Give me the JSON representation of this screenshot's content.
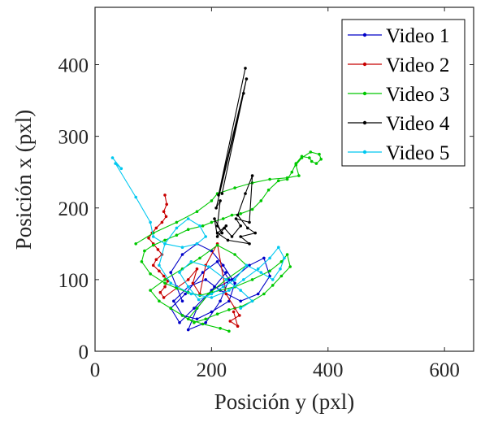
{
  "chart_data": {
    "type": "line",
    "title": "",
    "xlabel": "Posición y (pxl)",
    "ylabel": "Posición x (pxl)",
    "xlim": [
      0,
      650
    ],
    "ylim": [
      0,
      480
    ],
    "xticks": [
      0,
      200,
      400,
      600
    ],
    "yticks": [
      0,
      100,
      200,
      300,
      400
    ],
    "grid": false,
    "legend_position": "top-right",
    "series": [
      {
        "name": "Video 1",
        "color": "#0000c8",
        "x": [
          150,
          140,
          130,
          150,
          175,
          200,
          220,
          240,
          230,
          200,
          175,
          150,
          135,
          160,
          190,
          215,
          250,
          280,
          300,
          290,
          265,
          235,
          200,
          170,
          145,
          130,
          155,
          185,
          210,
          230,
          215,
          190,
          160,
          175,
          205,
          225
        ],
        "y": [
          70,
          90,
          110,
          135,
          150,
          140,
          120,
          95,
          70,
          55,
          45,
          50,
          70,
          90,
          100,
          85,
          70,
          80,
          105,
          130,
          120,
          100,
          85,
          60,
          40,
          60,
          80,
          110,
          125,
          100,
          70,
          40,
          30,
          60,
          90,
          110
        ]
      },
      {
        "name": "Video 2",
        "color": "#c80000",
        "x": [
          120,
          123,
          118,
          122,
          115,
          105,
          98,
          92,
          100,
          108,
          115,
          105,
          100,
          110,
          118,
          125,
          120,
          112,
          118,
          160,
          175,
          168,
          180,
          190,
          210,
          225,
          240,
          248,
          232,
          245,
          238
        ],
        "y": [
          218,
          205,
          195,
          188,
          180,
          172,
          165,
          158,
          150,
          142,
          135,
          128,
          120,
          112,
          105,
          98,
          90,
          82,
          75,
          100,
          115,
          95,
          80,
          120,
          150,
          80,
          60,
          50,
          42,
          35,
          55
        ]
      },
      {
        "name": "Video 3",
        "color": "#00c800",
        "x": [
          70,
          100,
          140,
          175,
          200,
          210,
          240,
          270,
          300,
          330,
          350,
          345,
          355,
          370,
          385,
          388,
          380,
          372,
          368,
          355,
          345,
          338,
          330,
          315,
          298,
          285,
          270,
          250,
          235,
          220,
          200,
          185,
          160,
          140,
          120,
          100,
          85,
          80,
          95,
          120,
          140,
          160,
          180,
          200,
          240,
          270,
          300,
          320,
          330,
          335,
          320,
          305,
          290,
          270,
          250,
          230,
          210,
          190,
          170,
          150,
          130,
          110,
          95,
          120,
          150,
          180,
          210,
          240,
          260,
          225,
          195,
          175,
          160,
          185,
          215,
          230
        ],
        "y": [
          150,
          165,
          180,
          195,
          210,
          220,
          228,
          235,
          240,
          242,
          245,
          260,
          270,
          278,
          275,
          268,
          262,
          265,
          270,
          272,
          262,
          250,
          240,
          238,
          225,
          210,
          198,
          192,
          190,
          185,
          180,
          175,
          170,
          162,
          155,
          148,
          140,
          125,
          108,
          95,
          88,
          82,
          78,
          82,
          90,
          100,
          112,
          125,
          135,
          118,
          105,
          92,
          80,
          70,
          62,
          58,
          52,
          45,
          40,
          50,
          60,
          70,
          85,
          100,
          115,
          130,
          148,
          135,
          120,
          100,
          80,
          60,
          45,
          38,
          32,
          28
        ]
      },
      {
        "name": "Video 4",
        "color": "#000000",
        "x": [
          258,
          212,
          260,
          218,
          255,
          208,
          215,
          210,
          218,
          205,
          210,
          222,
          235,
          250,
          242,
          265,
          270,
          258,
          245,
          262,
          275,
          250,
          265,
          228,
          210,
          225
        ],
        "y": [
          395,
          218,
          380,
          220,
          360,
          200,
          210,
          175,
          165,
          185,
          160,
          172,
          160,
          175,
          185,
          180,
          245,
          220,
          190,
          172,
          165,
          160,
          150,
          155,
          165,
          175
        ]
      },
      {
        "name": "Video 5",
        "color": "#00c8f0",
        "x": [
          30,
          45,
          35,
          70,
          95,
          100,
          120,
          150,
          175,
          190,
          180,
          160,
          140,
          120,
          110,
          130,
          165,
          200,
          230,
          255,
          280,
          300,
          315,
          325,
          318,
          305,
          285,
          260,
          240,
          220,
          200,
          178,
          160,
          145,
          165,
          195,
          225,
          250,
          270,
          250
        ],
        "y": [
          270,
          255,
          262,
          215,
          180,
          160,
          150,
          145,
          150,
          160,
          175,
          185,
          172,
          150,
          120,
          95,
          80,
          75,
          85,
          100,
          115,
          130,
          145,
          130,
          115,
          100,
          110,
          120,
          100,
          90,
          80,
          72,
          90,
          110,
          125,
          118,
          100,
          85,
          70,
          60
        ]
      }
    ]
  }
}
